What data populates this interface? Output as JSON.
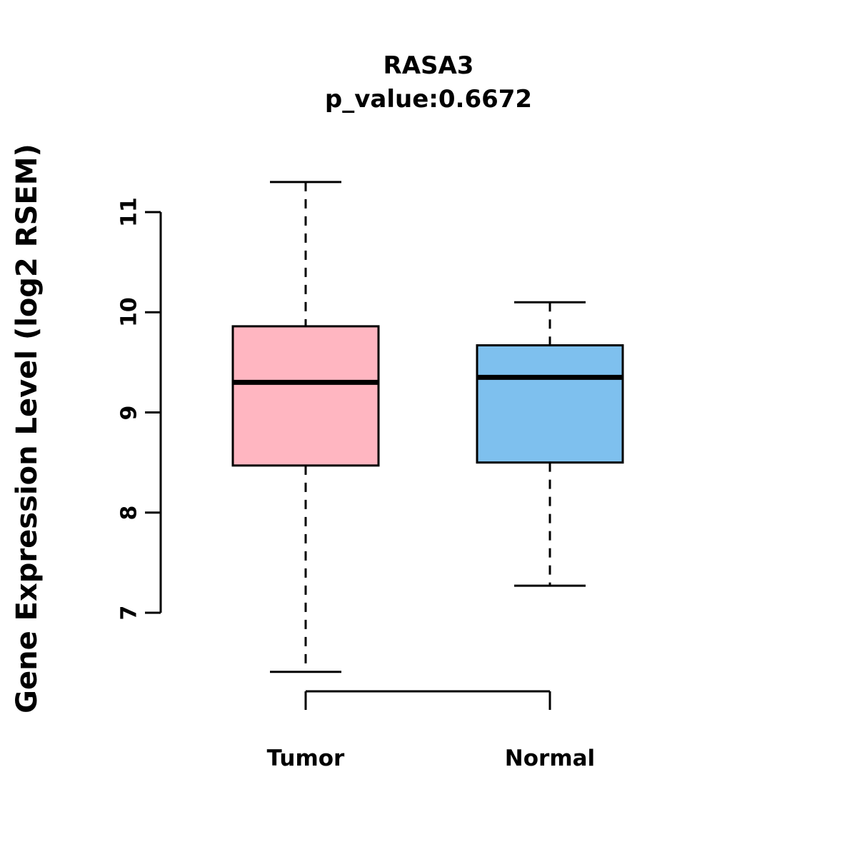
{
  "title": "RASA3",
  "subtitle": "p_value:0.6672",
  "ylabel": "Gene Expression Level (log2 RSEM)",
  "chart_data": {
    "type": "boxplot",
    "title": "RASA3",
    "subtitle": "p_value:0.6672",
    "xlabel": "",
    "ylabel": "Gene Expression Level (log2 RSEM)",
    "categories": [
      "Tumor",
      "Normal"
    ],
    "yticks": [
      7,
      8,
      9,
      10,
      11
    ],
    "ylim": [
      6.2,
      11.5
    ],
    "grid": false,
    "legend": "none",
    "series": [
      {
        "name": "Tumor",
        "min": 6.41,
        "q1": 8.47,
        "median": 9.3,
        "q3": 9.86,
        "max": 11.3,
        "fill_color": "#FFB6C1"
      },
      {
        "name": "Normal",
        "min": 7.27,
        "q1": 8.5,
        "median": 9.35,
        "q3": 9.67,
        "max": 10.1,
        "fill_color": "#7EC0EE"
      }
    ],
    "stroke_color": "#000000",
    "background_color": "#FFFFFF"
  }
}
